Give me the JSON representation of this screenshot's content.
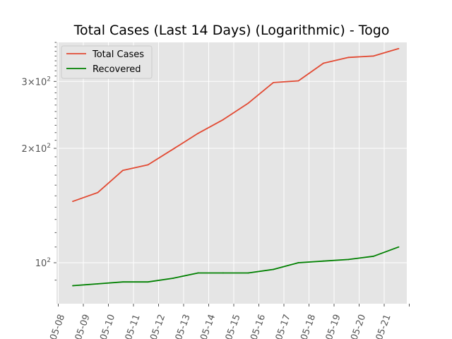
{
  "chart_data": {
    "type": "line",
    "title": "Total Cases (Last 14 Days) (Logarithmic) - Togo",
    "xlabel": "",
    "ylabel": "",
    "yscale": "log",
    "grid": true,
    "legend_position": "top-left",
    "x_tick_labels": [
      "05-08",
      "05-09",
      "05-10",
      "05-11",
      "05-12",
      "05-13",
      "05-14",
      "05-15",
      "05-16",
      "05-17",
      "05-18",
      "05-19",
      "05-20",
      "05-21"
    ],
    "y_tick_labels": [
      {
        "value": 100,
        "base": "10",
        "exp": "2"
      },
      {
        "value": 200,
        "base": "2×10",
        "exp": "2"
      },
      {
        "value": 300,
        "base": "3×10",
        "exp": "2"
      }
    ],
    "x": [
      "2020-05-08",
      "2020-05-09",
      "2020-05-10",
      "2020-05-11",
      "2020-05-12",
      "2020-05-13",
      "2020-05-14",
      "2020-05-15",
      "2020-05-16",
      "2020-05-17",
      "2020-05-18",
      "2020-05-19",
      "2020-05-20",
      "2020-05-21"
    ],
    "series": [
      {
        "name": "Total Cases",
        "color": "#e24a33",
        "values": [
          145,
          153,
          175,
          181,
          199,
          219,
          238,
          263,
          298,
          301,
          335,
          347,
          350,
          366
        ]
      },
      {
        "name": "Recovered",
        "color": "#008000",
        "values": [
          87,
          88,
          89,
          89,
          91,
          94,
          94,
          94,
          96,
          100,
          101,
          102,
          104,
          110
        ]
      }
    ]
  }
}
